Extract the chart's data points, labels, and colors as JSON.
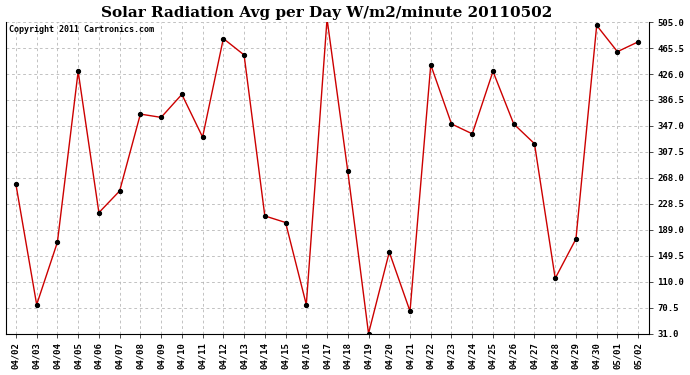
{
  "title": "Solar Radiation Avg per Day W/m2/minute 20110502",
  "copyright_text": "Copyright 2011 Cartronics.com",
  "dates": [
    "04/02",
    "04/03",
    "04/04",
    "04/05",
    "04/06",
    "04/07",
    "04/08",
    "04/09",
    "04/10",
    "04/11",
    "04/12",
    "04/13",
    "04/14",
    "04/15",
    "04/16",
    "04/17",
    "04/18",
    "04/19",
    "04/20",
    "04/21",
    "04/22",
    "04/23",
    "04/24",
    "04/25",
    "04/26",
    "04/27",
    "04/28",
    "04/29",
    "04/30",
    "05/01",
    "05/02"
  ],
  "values": [
    258,
    75,
    170,
    430,
    215,
    248,
    365,
    360,
    395,
    330,
    480,
    455,
    210,
    200,
    75,
    510,
    278,
    31,
    155,
    65,
    440,
    350,
    335,
    430,
    350,
    320,
    115,
    175,
    500,
    460,
    475
  ],
  "line_color": "#cc0000",
  "marker": "o",
  "marker_color": "#000000",
  "marker_size": 3,
  "bg_color": "#ffffff",
  "plot_bg_color": "#ffffff",
  "grid_color": "#aaaaaa",
  "grid_style": "--",
  "ylim": [
    31,
    505
  ],
  "yticks": [
    31.0,
    70.5,
    110.0,
    149.5,
    189.0,
    228.5,
    268.0,
    307.5,
    347.0,
    386.5,
    426.0,
    465.5,
    505.0
  ],
  "title_fontsize": 11,
  "copyright_fontsize": 6,
  "tick_fontsize": 6.5,
  "line_width": 1.0
}
